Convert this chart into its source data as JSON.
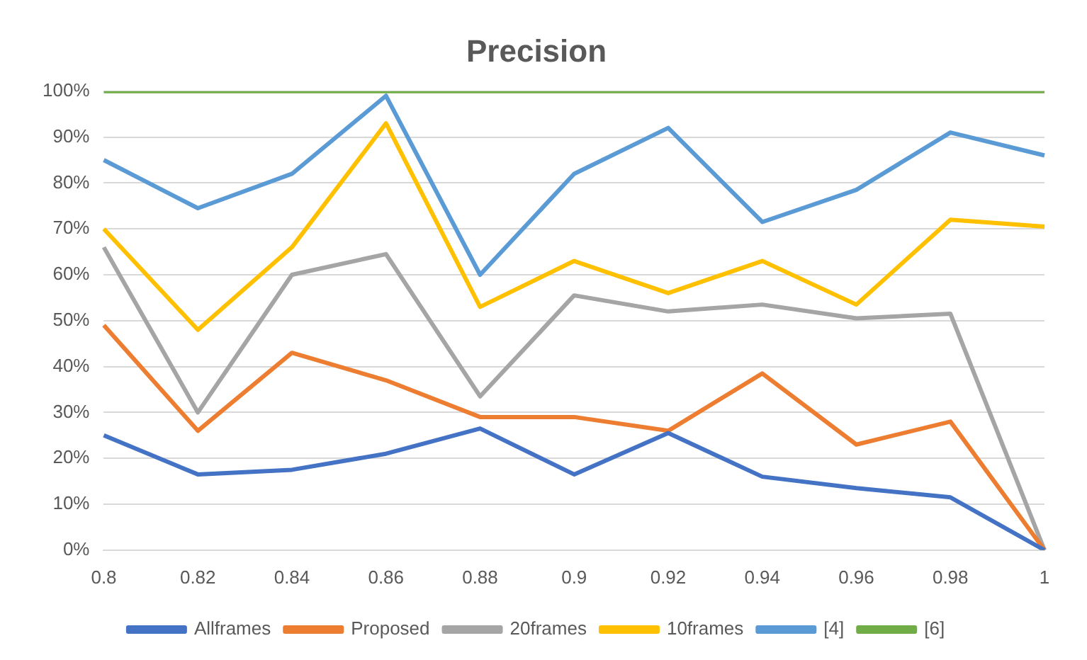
{
  "chart_data": {
    "type": "line",
    "title": "Precision",
    "categories": [
      "0.8",
      "0.82",
      "0.84",
      "0.86",
      "0.88",
      "0.9",
      "0.92",
      "0.94",
      "0.96",
      "0.98",
      "1"
    ],
    "series": [
      {
        "name": "Allframes",
        "color": "#4472c4",
        "values": [
          25,
          16.5,
          17.5,
          21,
          26.5,
          16.5,
          25.5,
          16,
          13.5,
          11.5,
          0
        ]
      },
      {
        "name": "Proposed",
        "color": "#ed7d31",
        "values": [
          49,
          26,
          43,
          37,
          29,
          29,
          26,
          38.5,
          23,
          28,
          0
        ]
      },
      {
        "name": "20frames",
        "color": "#a5a5a5",
        "values": [
          66,
          30,
          60,
          64.5,
          33.5,
          55.5,
          52,
          53.5,
          50.5,
          51.5,
          0
        ]
      },
      {
        "name": "10frames",
        "color": "#ffc000",
        "values": [
          70,
          48,
          66,
          93,
          53,
          63,
          56,
          63,
          53.5,
          72,
          70.5
        ]
      },
      {
        "name": "[4]",
        "color": "#5b9bd5",
        "values": [
          85,
          74.5,
          82,
          99,
          60,
          82,
          92,
          71.5,
          78.5,
          91,
          86
        ]
      },
      {
        "name": "[6]",
        "color": "#70ad47",
        "values": [
          100,
          100,
          100,
          100,
          100,
          100,
          100,
          100,
          100,
          100,
          100
        ]
      }
    ],
    "ylim": [
      0,
      100
    ],
    "yticks": [
      {
        "value": 0,
        "label": "0%"
      },
      {
        "value": 10,
        "label": "10%"
      },
      {
        "value": 20,
        "label": "20%"
      },
      {
        "value": 30,
        "label": "30%"
      },
      {
        "value": 40,
        "label": "40%"
      },
      {
        "value": 50,
        "label": "50%"
      },
      {
        "value": 60,
        "label": "60%"
      },
      {
        "value": 70,
        "label": "70%"
      },
      {
        "value": 80,
        "label": "80%"
      },
      {
        "value": 90,
        "label": "90%"
      },
      {
        "value": 100,
        "label": "100%"
      }
    ],
    "grid": "y",
    "legend": "bottom",
    "marker": "none",
    "line_style": "solid"
  }
}
